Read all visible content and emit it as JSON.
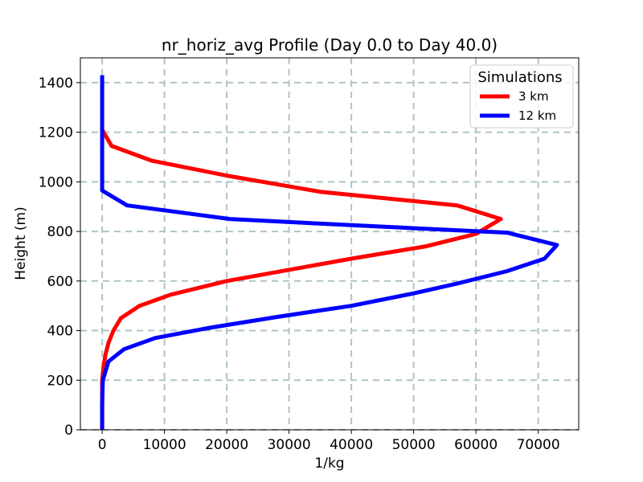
{
  "chart_data": {
    "type": "line",
    "title": "nr_horiz_avg Profile (Day 0.0 to Day 40.0)",
    "xlabel": "1/kg",
    "ylabel": "Height (m)",
    "xlim": [
      -3500,
      76500
    ],
    "ylim": [
      0,
      1500
    ],
    "xticks": [
      0,
      10000,
      20000,
      30000,
      40000,
      50000,
      60000,
      70000
    ],
    "yticks": [
      0,
      200,
      400,
      600,
      800,
      1000,
      1200,
      1400
    ],
    "grid": true,
    "legend": {
      "title": "Simulations",
      "position": "top-right"
    },
    "series": [
      {
        "name": "3 km",
        "color": "#ff0000",
        "x": [
          0,
          0,
          0,
          0,
          0,
          200,
          500,
          1000,
          1800,
          3000,
          6000,
          11000,
          20000,
          40000,
          52000,
          60000,
          64000,
          57000,
          35000,
          20000,
          8000,
          1500,
          0,
          0
        ],
        "y": [
          0,
          50,
          100,
          150,
          200,
          250,
          300,
          350,
          400,
          450,
          500,
          545,
          600,
          690,
          740,
          790,
          850,
          905,
          960,
          1025,
          1085,
          1145,
          1210,
          1220
        ]
      },
      {
        "name": "12 km",
        "color": "#0000ff",
        "x": [
          0,
          0,
          0,
          100,
          1000,
          3500,
          8500,
          17000,
          28000,
          40000,
          50000,
          57000,
          65000,
          71000,
          73000,
          65000,
          40000,
          20500,
          4000,
          0,
          0,
          0,
          0
        ],
        "y": [
          0,
          50,
          100,
          200,
          275,
          325,
          370,
          410,
          455,
          500,
          550,
          590,
          640,
          690,
          745,
          795,
          825,
          850,
          905,
          965,
          1100,
          1300,
          1430
        ]
      }
    ]
  }
}
